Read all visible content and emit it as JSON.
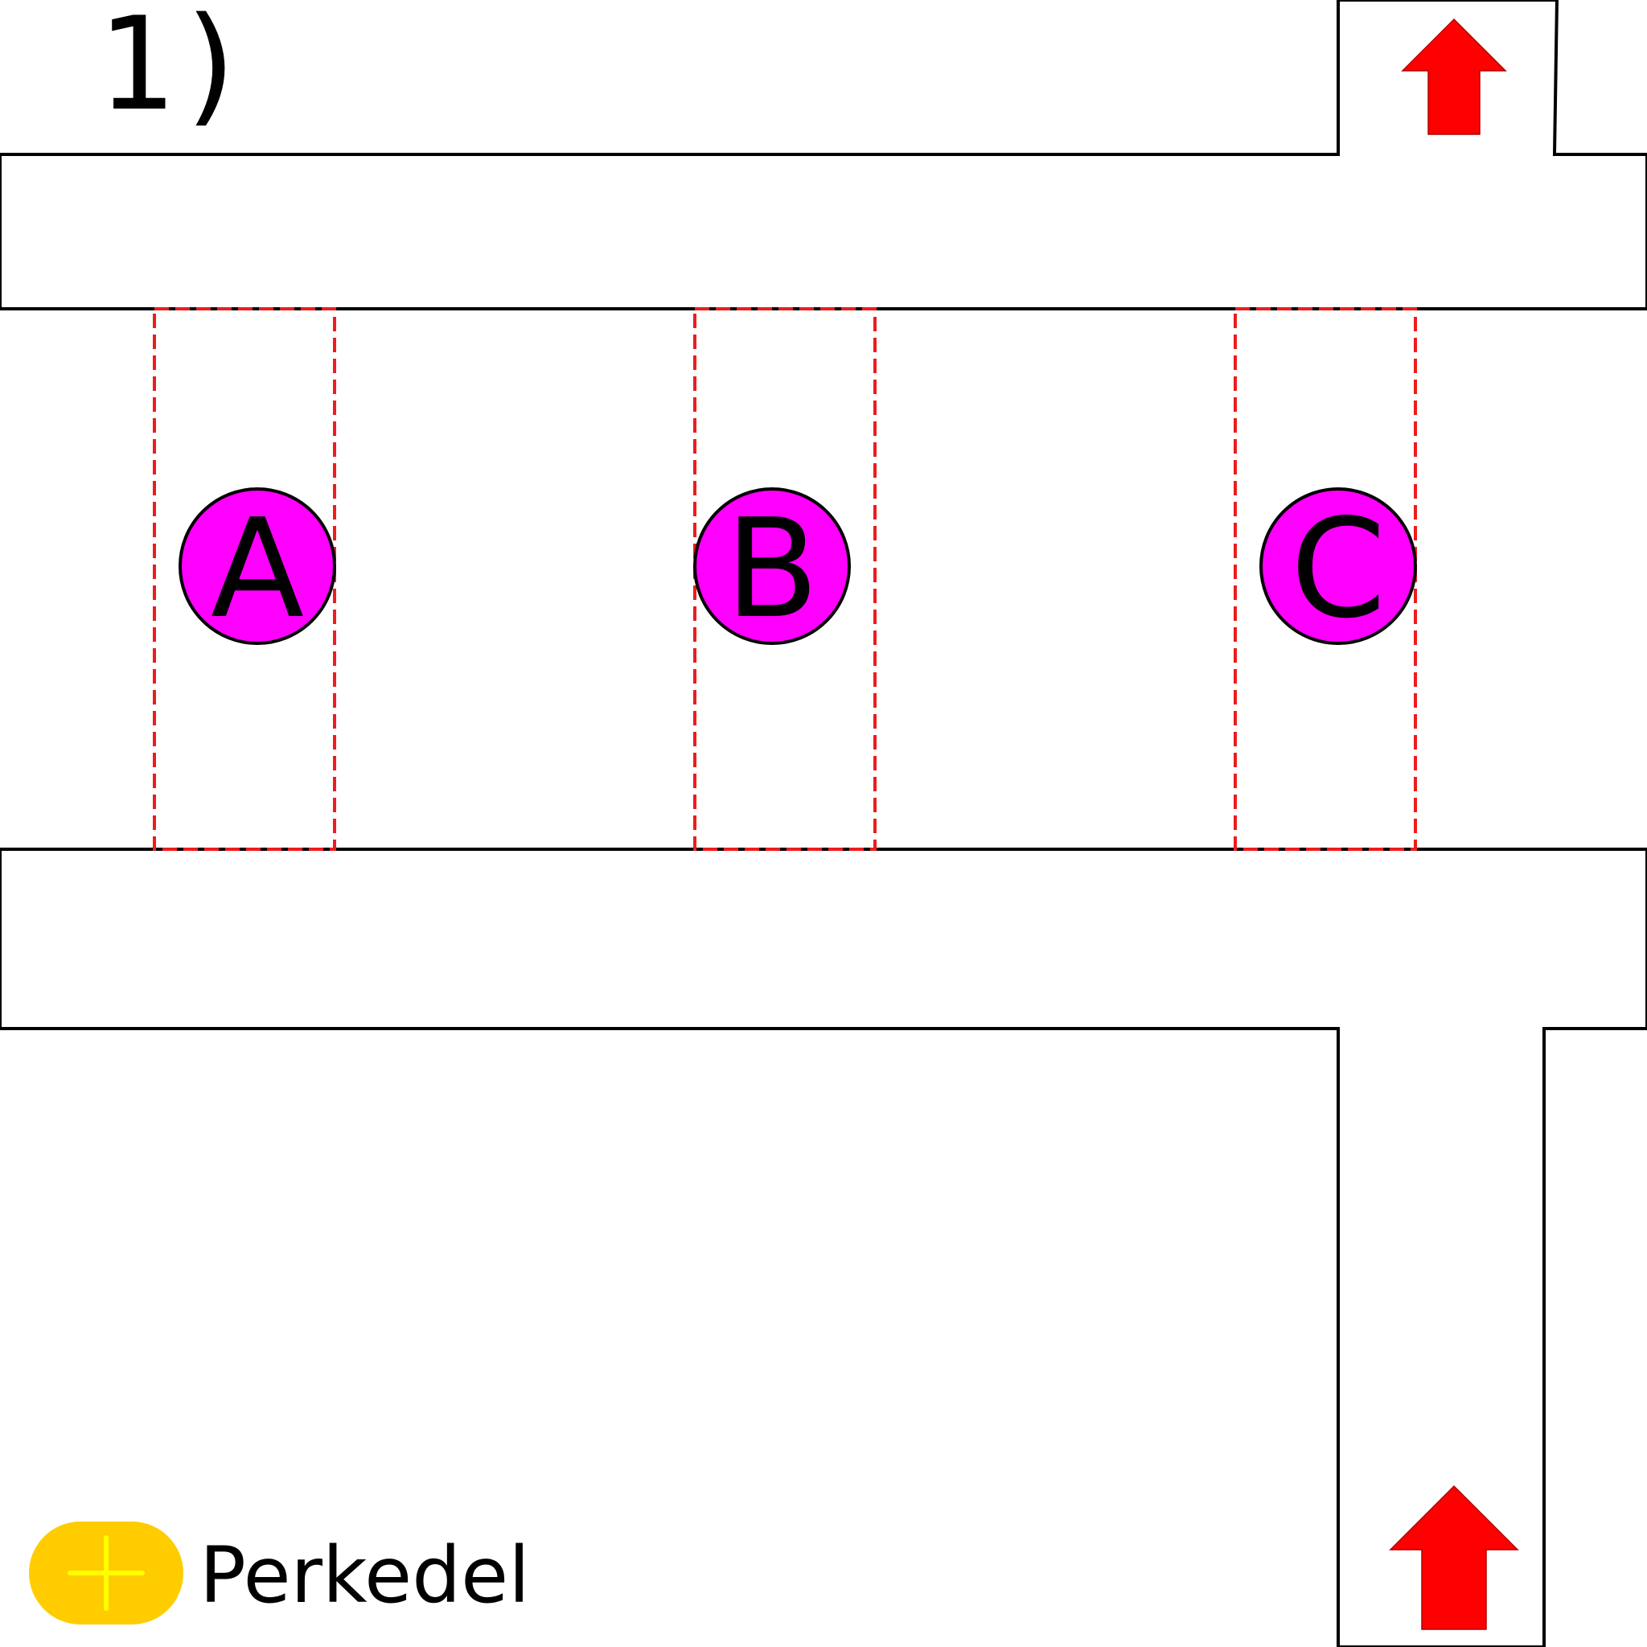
{
  "title": "1)",
  "zones": [
    {
      "id": "zone-a",
      "label": "A"
    },
    {
      "id": "zone-b",
      "label": "B"
    },
    {
      "id": "zone-c",
      "label": "C"
    }
  ],
  "direction_arrows": [
    {
      "id": "exit-arrow",
      "direction": "up"
    },
    {
      "id": "entry-arrow",
      "direction": "up"
    }
  ],
  "vehicle": {
    "label": "Perkedel",
    "icon": "plus-icon"
  },
  "colors": {
    "road_stroke": "#000000",
    "road_fill": "#ffffff",
    "zone_border": "#ee1c1c",
    "marker_fill": "#ff00ff",
    "arrow_fill": "#ff0000",
    "vehicle_body": "#ffcc00",
    "vehicle_cross": "#ffff00"
  }
}
